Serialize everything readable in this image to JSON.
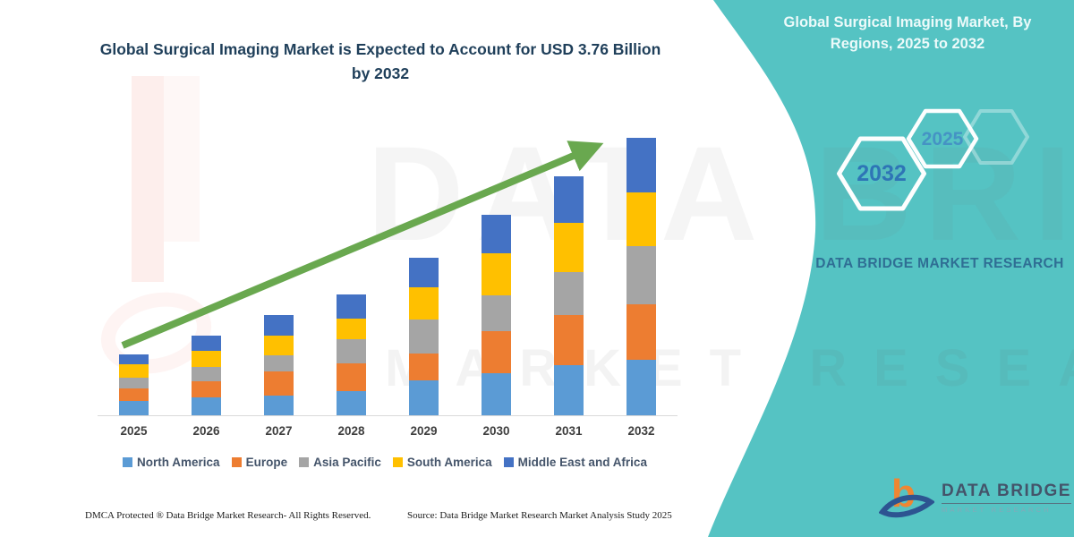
{
  "title": "Global Surgical Imaging Market is Expected to Account for USD 3.76 Billion by 2032",
  "sidebar": {
    "heading": "Global Surgical Imaging Market, By Regions, 2025 to 2032",
    "hexagon_large_label": "2032",
    "hexagon_small_label": "2025",
    "brand_text": "DATA BRIDGE MARKET RESEARCH"
  },
  "logo": {
    "monogram": "b",
    "name": "DATA BRIDGE",
    "tagline": "MARKET RESEARCH"
  },
  "watermark": {
    "row1": "DATA BRIDGE",
    "row2": "MARKET RESEARCH"
  },
  "footer": {
    "dmca": "DMCA Protected ® Data Bridge Market Research-  All Rights Reserved.",
    "source": "Source: Data Bridge Market Research  Market Analysis Study 2025"
  },
  "colors": {
    "panel_teal": "#55C3C3",
    "arrow_green": "#69A84F",
    "title_navy": "#1F3F5A",
    "hexagon_large_label": "#2E75B6",
    "hexagon_small_label": "#4593C4",
    "axis_line": "#D9D9D9",
    "logo_orange": "#EF8632",
    "logo_blue": "#2D5491"
  },
  "chart_data": {
    "type": "bar",
    "stacked": true,
    "title": "Global Surgical Imaging Market is Expected to Account for USD 3.76 Billion by 2032",
    "unit": "USD Billion",
    "categories": [
      "2025",
      "2026",
      "2027",
      "2028",
      "2029",
      "2030",
      "2031",
      "2032"
    ],
    "series": [
      {
        "name": "North America",
        "color": "#5B9BD5",
        "values": [
          0.2,
          0.24,
          0.27,
          0.33,
          0.47,
          0.57,
          0.68,
          0.75
        ]
      },
      {
        "name": "Europe",
        "color": "#ED7D31",
        "values": [
          0.16,
          0.22,
          0.32,
          0.37,
          0.37,
          0.57,
          0.68,
          0.76
        ]
      },
      {
        "name": "Asia Pacific",
        "color": "#A5A5A5",
        "values": [
          0.15,
          0.2,
          0.22,
          0.33,
          0.46,
          0.48,
          0.58,
          0.78
        ]
      },
      {
        "name": "South America",
        "color": "#FFC000",
        "values": [
          0.18,
          0.22,
          0.27,
          0.28,
          0.43,
          0.58,
          0.67,
          0.73
        ]
      },
      {
        "name": "Middle East and Africa",
        "color": "#4472C4",
        "values": [
          0.13,
          0.2,
          0.28,
          0.33,
          0.41,
          0.52,
          0.63,
          0.74
        ]
      }
    ],
    "totals_estimate": [
      0.82,
      1.08,
      1.36,
      1.64,
      2.14,
      2.72,
      3.24,
      3.76
    ],
    "ylim": [
      0,
      3.9
    ],
    "grid": false,
    "legend_position": "bottom",
    "annotations": [
      "upward growth arrow from 2025 to 2032"
    ]
  }
}
